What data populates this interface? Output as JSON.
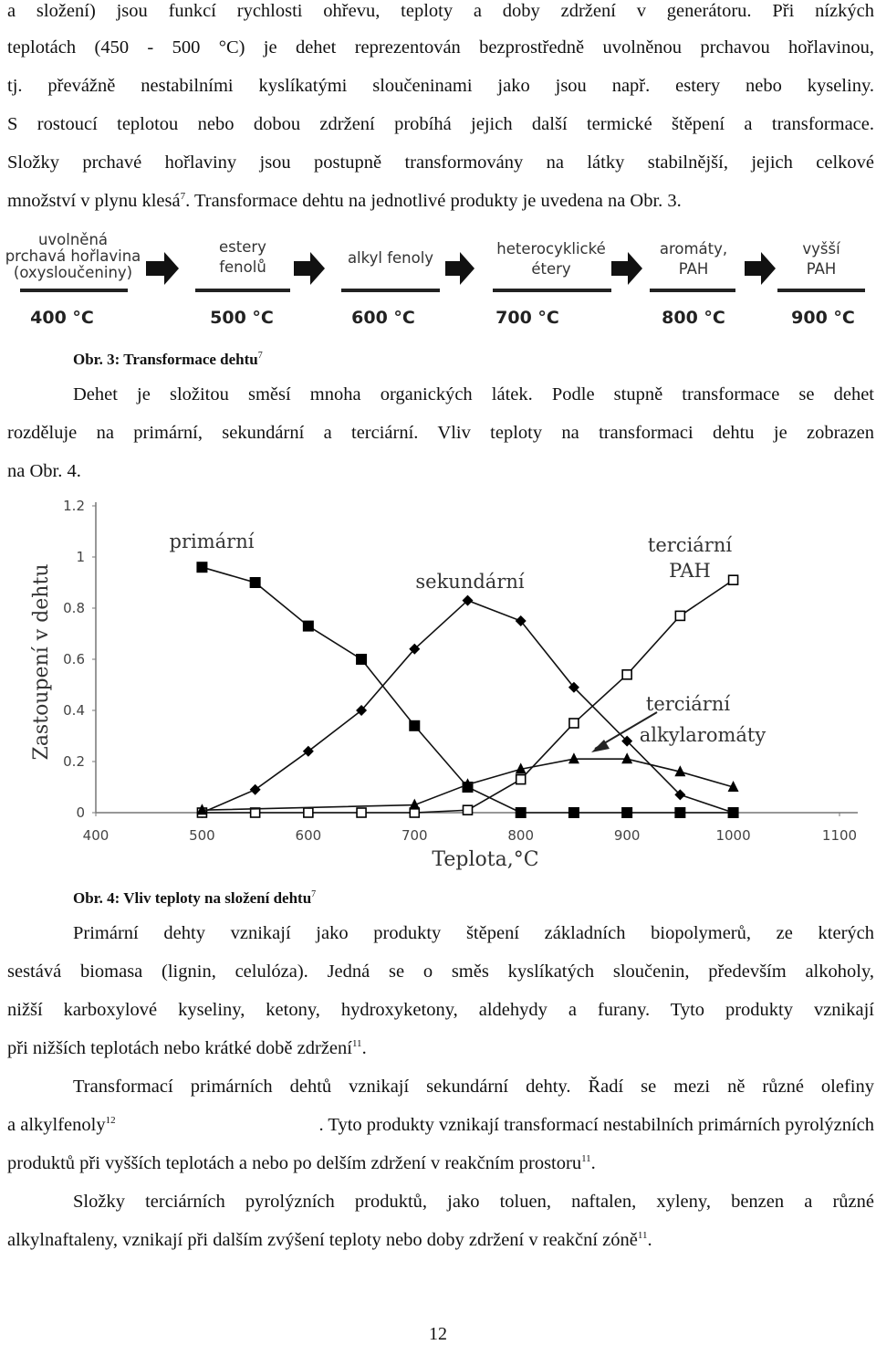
{
  "paragraphs_top": [
    "a složení) jsou funkcí rychlosti ohřevu, teploty a doby zdržení v generátoru. Při nízkých",
    "teplotách (450 - 500 °C) je dehet reprezentován bezprostředně uvolněnou prchavou hořlavinou,",
    "tj. převážně nestabilními kyslíkatými sloučeninami jako jsou např. estery nebo kyseliny.",
    "S rostoucí teplotou nebo dobou zdržení probíhá jejich další termické štěpení a transformace.",
    "Složky prchavé hořlaviny jsou postupně transformovány na látky stabilnější, jejich celkové"
  ],
  "line6_a": "množství v plynu klesá",
  "line6_sup": "7",
  "line6_b": ". Transformace dehtu na jednotlivé produkty je uvedena na Obr. 3.",
  "fig3": {
    "stages": [
      {
        "label1": "uvolněná",
        "label2": "prchavá hořlavina",
        "label3": "(oxysloučeniny)",
        "temp": "400 °C"
      },
      {
        "label1": "estery",
        "label2": "fenolů",
        "label3": "",
        "temp": "500 °C"
      },
      {
        "label1": "alkyl fenoly",
        "label2": "",
        "label3": "",
        "temp": "600 °C"
      },
      {
        "label1": "heterocyklické",
        "label2": "étery",
        "label3": "",
        "temp": "700 °C"
      },
      {
        "label1": "aromáty,",
        "label2": "PAH",
        "label3": "",
        "temp": "800 °C"
      },
      {
        "label1": "vyšší",
        "label2": "PAH",
        "label3": "",
        "temp": "900 °C"
      }
    ],
    "caption": "Obr. 3: Transformace dehtu",
    "caption_sup": "7"
  },
  "para2": [
    "Dehet je složitou směsí mnoha organických látek. Podle stupně transformace se dehet",
    "rozděluje na primární, sekundární a terciární. Vliv teploty na transformaci dehtu je zobrazen",
    "na Obr. 4."
  ],
  "chart_data": {
    "type": "line",
    "xlabel": "Teplota,°C",
    "ylabel": "Zastoupení v dehtu",
    "xlim": [
      400,
      1100
    ],
    "ylim": [
      0,
      1.2
    ],
    "xticks": [
      "400",
      "500",
      "600",
      "700",
      "800",
      "900",
      "1000",
      "1100"
    ],
    "yticks": [
      "0",
      "0.2",
      "0.4",
      "0.6",
      "0.8",
      "1",
      "1.2"
    ],
    "series": [
      {
        "name": "primární",
        "marker": "filled-square",
        "x": [
          500,
          550,
          600,
          650,
          700,
          750,
          800,
          850,
          900,
          950,
          1000
        ],
        "y": [
          0.96,
          0.9,
          0.73,
          0.6,
          0.34,
          0.1,
          0.0,
          0.0,
          0.0,
          0.0,
          0.0
        ]
      },
      {
        "name": "sekundární",
        "marker": "filled-diamond",
        "x": [
          500,
          550,
          600,
          650,
          700,
          750,
          800,
          850,
          900,
          950,
          1000
        ],
        "y": [
          0.0,
          0.09,
          0.24,
          0.4,
          0.64,
          0.83,
          0.75,
          0.49,
          0.28,
          0.07,
          0.0
        ]
      },
      {
        "name": "terciární PAH",
        "marker": "open-square",
        "x": [
          500,
          550,
          600,
          650,
          700,
          750,
          800,
          850,
          900,
          950,
          1000
        ],
        "y": [
          0.0,
          0.0,
          0.0,
          0.0,
          0.0,
          0.01,
          0.13,
          0.35,
          0.54,
          0.77,
          0.91
        ]
      },
      {
        "name": "terciární alkylaromáty",
        "marker": "filled-triangle",
        "x": [
          500,
          700,
          750,
          800,
          850,
          900,
          950,
          1000
        ],
        "y": [
          0.01,
          0.03,
          0.11,
          0.17,
          0.21,
          0.21,
          0.16,
          0.1
        ]
      }
    ],
    "series_labels": [
      "primární",
      "sekundární",
      "terciární",
      "PAH",
      "terciární",
      "alkylaromáty"
    ]
  },
  "fig4": {
    "caption": "Obr. 4: Vliv teploty na složení dehtu",
    "caption_sup": "7"
  },
  "para3": {
    "l1": "Primární dehty vznikají jako produkty štěpení základních biopolymerů, ze kterých",
    "l2": "sestává biomasa (lignin, celulóza). Jedná se o směs kyslíkatých sloučenin, především alkoholy,",
    "l3": "nižší karboxylové kyseliny, ketony, hydroxyketony, aldehydy a furany. Tyto produkty vznikají",
    "l4": "při nižších teplotách nebo krátké době zdržení",
    "l4_sup": "11",
    "l4_end": "."
  },
  "para4": {
    "l1": "Transformací primárních dehtů vznikají sekundární dehty. Řadí se mezi ně různé olefiny",
    "l2a": "a alkylfenoly",
    "l2_sup": "12",
    "l2b": ". Tyto produkty vznikají transformací nestabilních primárních pyrolýzních",
    "l3": "produktů při vyšších teplotách a nebo po delším zdržení v reakčním prostoru",
    "l3_sup": "11",
    "l3_end": "."
  },
  "para5": {
    "l1": "Složky terciárních pyrolýzních produktů, jako toluen, naftalen, xyleny, benzen a různé",
    "l2": "alkylnaftaleny, vznikají při dalším zvýšení teploty nebo doby zdržení v reakční zóně",
    "l2_sup": "11",
    "l2_end": "."
  },
  "page_number": "12"
}
